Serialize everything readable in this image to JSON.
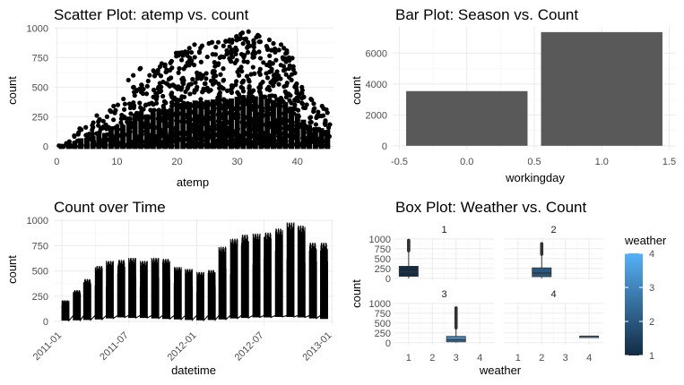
{
  "chart_data": [
    {
      "type": "scatter",
      "title": "Scatter Plot: atemp vs. count",
      "xlabel": "atemp",
      "ylabel": "count",
      "xlim": [
        -0.5,
        46
      ],
      "ylim": [
        -35,
        1010
      ],
      "x_ticks": [
        0,
        10,
        20,
        30,
        40
      ],
      "y_ticks": [
        0,
        250,
        500,
        750,
        1000
      ],
      "envelope": [
        {
          "x": 0.8,
          "max": 5
        },
        {
          "x": 2,
          "max": 40
        },
        {
          "x": 3,
          "max": 90
        },
        {
          "x": 4,
          "max": 150
        },
        {
          "x": 5,
          "max": 160
        },
        {
          "x": 6,
          "max": 200
        },
        {
          "x": 7,
          "max": 260
        },
        {
          "x": 8,
          "max": 250
        },
        {
          "x": 9,
          "max": 340
        },
        {
          "x": 10,
          "max": 350
        },
        {
          "x": 11,
          "max": 400
        },
        {
          "x": 12,
          "max": 560
        },
        {
          "x": 13,
          "max": 600
        },
        {
          "x": 14,
          "max": 660
        },
        {
          "x": 15,
          "max": 600
        },
        {
          "x": 16,
          "max": 640
        },
        {
          "x": 17,
          "max": 700
        },
        {
          "x": 18,
          "max": 690
        },
        {
          "x": 19,
          "max": 720
        },
        {
          "x": 20,
          "max": 790
        },
        {
          "x": 21,
          "max": 800
        },
        {
          "x": 22,
          "max": 830
        },
        {
          "x": 23,
          "max": 860
        },
        {
          "x": 24,
          "max": 850
        },
        {
          "x": 25,
          "max": 870
        },
        {
          "x": 26,
          "max": 880
        },
        {
          "x": 27,
          "max": 880
        },
        {
          "x": 28,
          "max": 890
        },
        {
          "x": 29,
          "max": 900
        },
        {
          "x": 30,
          "max": 930
        },
        {
          "x": 31,
          "max": 960
        },
        {
          "x": 32,
          "max": 970
        },
        {
          "x": 33,
          "max": 940
        },
        {
          "x": 34,
          "max": 930
        },
        {
          "x": 35,
          "max": 900
        },
        {
          "x": 36,
          "max": 870
        },
        {
          "x": 37,
          "max": 860
        },
        {
          "x": 38,
          "max": 830
        },
        {
          "x": 39,
          "max": 750
        },
        {
          "x": 40,
          "max": 620
        },
        {
          "x": 41,
          "max": 500
        },
        {
          "x": 42,
          "max": 400
        },
        {
          "x": 43,
          "max": 360
        },
        {
          "x": 44,
          "max": 340
        },
        {
          "x": 45,
          "max": 310
        }
      ]
    },
    {
      "type": "bar",
      "title": "Bar Plot: Season vs. Count",
      "xlabel": "workingday",
      "ylabel": "count",
      "xlim": [
        -0.5,
        1.5
      ],
      "ylim": [
        -300,
        7700
      ],
      "x_ticks": [
        -0.5,
        0.0,
        0.5,
        1.0,
        1.5
      ],
      "x_tick_labels": [
        "-0.5",
        "0.0",
        "0.5",
        "1.0",
        "1.5"
      ],
      "y_ticks": [
        0,
        2000,
        4000,
        6000
      ],
      "categories": [
        0,
        1
      ],
      "values": [
        3540,
        7360
      ],
      "bar_width": 0.9,
      "color": "#595959"
    },
    {
      "type": "line",
      "title": "Count over Time",
      "xlabel": "datetime",
      "ylabel": "count",
      "ylim": [
        -35,
        1010
      ],
      "x_range": [
        "2010-12-10",
        "2013-01-05"
      ],
      "x_ticks": [
        "2011-01",
        "2011-07",
        "2012-01",
        "2012-07",
        "2013-01"
      ],
      "y_ticks": [
        0,
        250,
        500,
        750,
        1000
      ],
      "months": [
        {
          "month": "2011-01",
          "peak": 210,
          "trough": 8
        },
        {
          "month": "2011-02",
          "peak": 310,
          "trough": 12
        },
        {
          "month": "2011-03",
          "peak": 420,
          "trough": 15
        },
        {
          "month": "2011-04",
          "peak": 550,
          "trough": 20
        },
        {
          "month": "2011-05",
          "peak": 600,
          "trough": 30
        },
        {
          "month": "2011-06",
          "peak": 610,
          "trough": 40
        },
        {
          "month": "2011-07",
          "peak": 630,
          "trough": 35
        },
        {
          "month": "2011-08",
          "peak": 600,
          "trough": 35
        },
        {
          "month": "2011-09",
          "peak": 630,
          "trough": 30
        },
        {
          "month": "2011-10",
          "peak": 620,
          "trough": 25
        },
        {
          "month": "2011-11",
          "peak": 540,
          "trough": 20
        },
        {
          "month": "2011-12",
          "peak": 520,
          "trough": 15
        },
        {
          "month": "2012-01",
          "peak": 490,
          "trough": 12
        },
        {
          "month": "2012-02",
          "peak": 510,
          "trough": 15
        },
        {
          "month": "2012-03",
          "peak": 740,
          "trough": 20
        },
        {
          "month": "2012-04",
          "peak": 820,
          "trough": 30
        },
        {
          "month": "2012-05",
          "peak": 860,
          "trough": 35
        },
        {
          "month": "2012-06",
          "peak": 870,
          "trough": 40
        },
        {
          "month": "2012-07",
          "peak": 880,
          "trough": 40
        },
        {
          "month": "2012-08",
          "peak": 920,
          "trough": 45
        },
        {
          "month": "2012-09",
          "peak": 980,
          "trough": 45
        },
        {
          "month": "2012-10",
          "peak": 950,
          "trough": 40
        },
        {
          "month": "2012-11",
          "peak": 780,
          "trough": 30
        },
        {
          "month": "2012-12",
          "peak": 780,
          "trough": 25
        }
      ]
    },
    {
      "type": "box",
      "title": "Box Plot: Weather vs. Count",
      "xlabel": "weather",
      "ylabel": "count",
      "xlim": [
        0.4,
        4.6
      ],
      "ylim": [
        -50,
        1020
      ],
      "x_ticks": [
        1,
        2,
        3,
        4
      ],
      "y_ticks": [
        0,
        250,
        500,
        750,
        1000
      ],
      "facets": [
        "1",
        "2",
        "3",
        "4"
      ],
      "boxes": [
        {
          "facet": "1",
          "weather": 1,
          "q1": 49,
          "median": 161,
          "q3": 305,
          "whisker_low": 1,
          "whisker_high": 688,
          "outlier_max": 977
        },
        {
          "facet": "2",
          "weather": 2,
          "q1": 41,
          "median": 134,
          "q3": 265,
          "whisker_low": 1,
          "whisker_high": 600,
          "outlier_max": 890
        },
        {
          "facet": "3",
          "weather": 3,
          "q1": 23,
          "median": 71,
          "q3": 161,
          "whisker_low": 1,
          "whisker_high": 368,
          "outlier_max": 891
        },
        {
          "facet": "4",
          "weather": 4,
          "q1": 164,
          "median": 164,
          "q3": 164,
          "whisker_low": 164,
          "whisker_high": 164,
          "outlier_max": 164
        }
      ],
      "legend": {
        "title": "weather",
        "min": 1,
        "max": 4,
        "ticks": [
          1,
          2,
          3,
          4
        ],
        "low_color": "#132B43",
        "high_color": "#56B1F7",
        "placement": "right"
      }
    }
  ]
}
